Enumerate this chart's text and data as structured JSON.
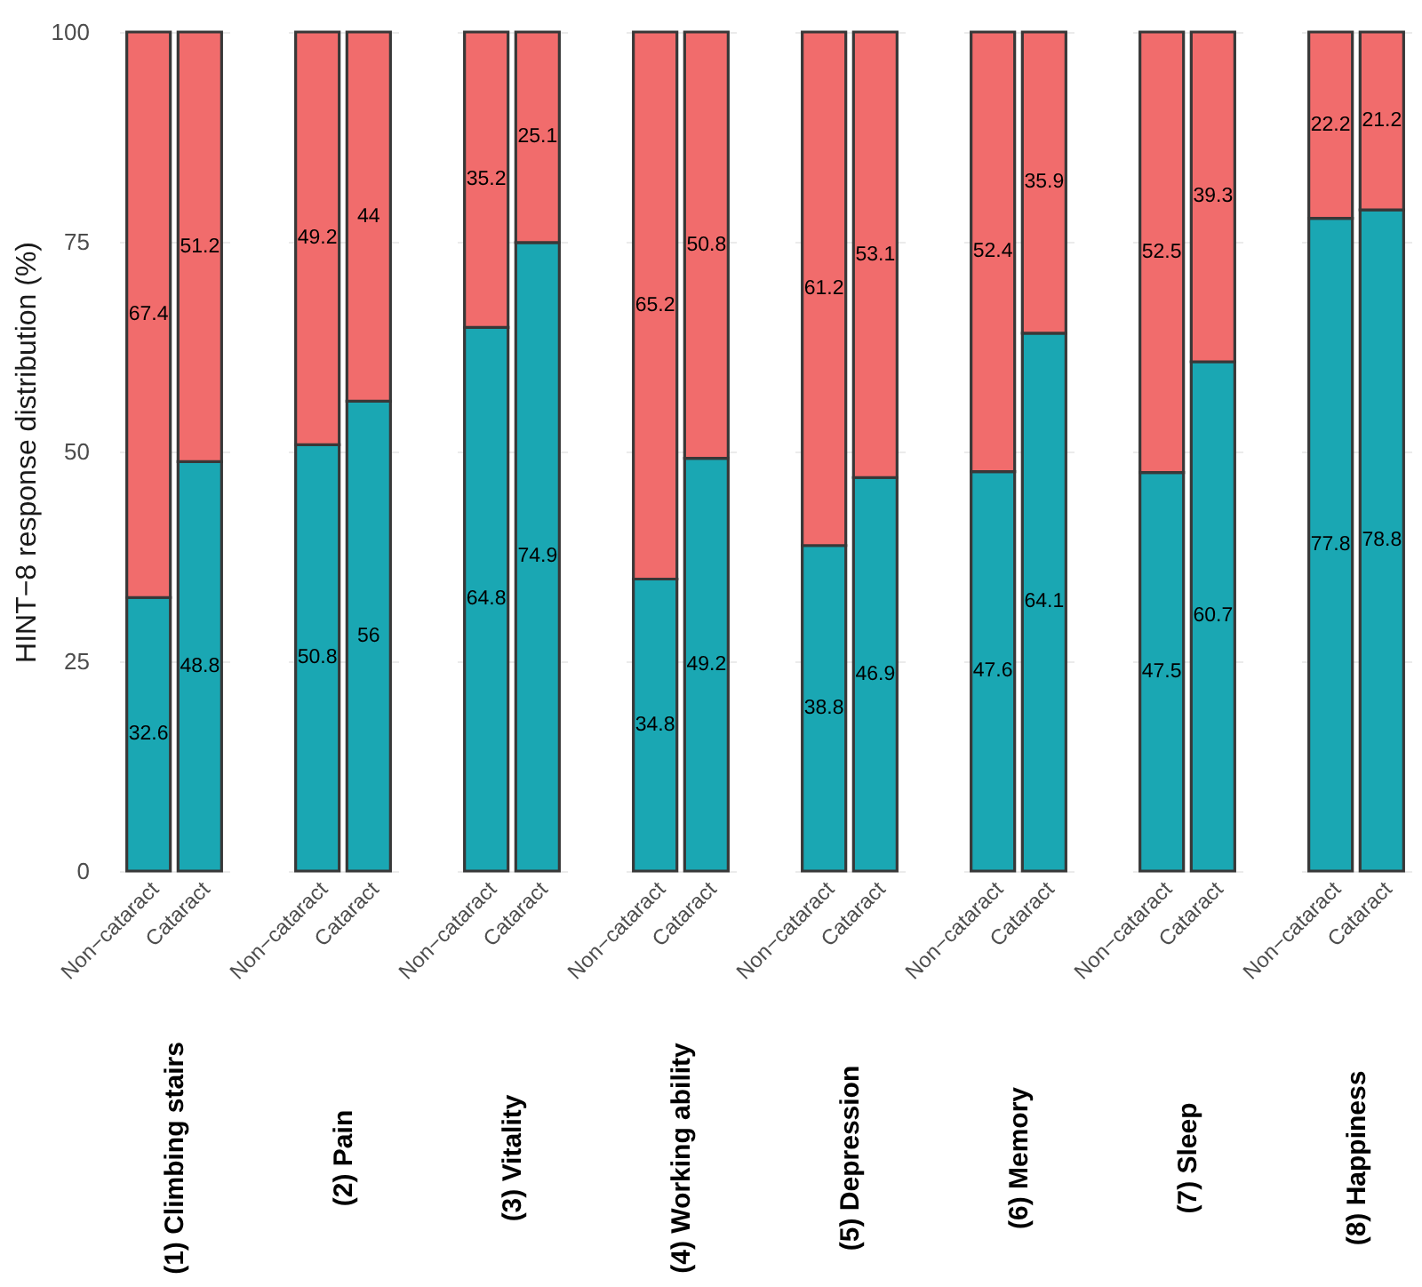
{
  "chart_data": [
    {
      "type": "bar",
      "stacked": true,
      "categories": [
        "Non−cataract",
        "Cataract"
      ],
      "series": [
        {
          "color": "#1aa7b3",
          "values": [
            32.6,
            48.8
          ]
        },
        {
          "color": "#f16c6c",
          "values": [
            67.4,
            51.2
          ]
        }
      ],
      "title": "(1) Climbing stairs",
      "ylabel": "HINT−8 response distribution (%)",
      "ylim": [
        0,
        100
      ],
      "yticks": [
        0,
        25,
        50,
        75,
        100
      ],
      "grid": "y",
      "data_labels": true
    },
    {
      "type": "bar",
      "stacked": true,
      "categories": [
        "Non−cataract",
        "Cataract"
      ],
      "series": [
        {
          "color": "#1aa7b3",
          "values": [
            50.8,
            56
          ]
        },
        {
          "color": "#f16c6c",
          "values": [
            49.2,
            44
          ]
        }
      ],
      "title": "(2) Pain",
      "ylim": [
        0,
        100
      ],
      "yticks": [
        0,
        25,
        50,
        75,
        100
      ],
      "grid": "y",
      "data_labels": true,
      "tick_labels": "x"
    },
    {
      "type": "bar",
      "stacked": true,
      "categories": [
        "Non−cataract",
        "Cataract"
      ],
      "series": [
        {
          "color": "#1aa7b3",
          "values": [
            64.8,
            74.9
          ]
        },
        {
          "color": "#f16c6c",
          "values": [
            35.2,
            25.1
          ]
        }
      ],
      "title": "(3) Vitality",
      "ylim": [
        0,
        100
      ],
      "yticks": [
        0,
        25,
        50,
        75,
        100
      ],
      "grid": "y",
      "data_labels": true,
      "tick_labels": "x"
    },
    {
      "type": "bar",
      "stacked": true,
      "categories": [
        "Non−cataract",
        "Cataract"
      ],
      "series": [
        {
          "color": "#1aa7b3",
          "values": [
            34.8,
            49.2
          ]
        },
        {
          "color": "#f16c6c",
          "values": [
            65.2,
            50.8
          ]
        }
      ],
      "title": "(4) Working ability",
      "ylim": [
        0,
        100
      ],
      "yticks": [
        0,
        25,
        50,
        75,
        100
      ],
      "grid": "y",
      "data_labels": true,
      "tick_labels": "x"
    },
    {
      "type": "bar",
      "stacked": true,
      "categories": [
        "Non−cataract",
        "Cataract"
      ],
      "series": [
        {
          "color": "#1aa7b3",
          "values": [
            38.8,
            46.9
          ]
        },
        {
          "color": "#f16c6c",
          "values": [
            61.2,
            53.1
          ]
        }
      ],
      "title": "(5) Depression",
      "ylim": [
        0,
        100
      ],
      "yticks": [
        0,
        25,
        50,
        75,
        100
      ],
      "grid": "y",
      "data_labels": true,
      "tick_labels": "x"
    },
    {
      "type": "bar",
      "stacked": true,
      "categories": [
        "Non−cataract",
        "Cataract"
      ],
      "series": [
        {
          "color": "#1aa7b3",
          "values": [
            47.6,
            64.1
          ]
        },
        {
          "color": "#f16c6c",
          "values": [
            52.4,
            35.9
          ]
        }
      ],
      "title": "(6) Memory",
      "ylim": [
        0,
        100
      ],
      "yticks": [
        0,
        25,
        50,
        75,
        100
      ],
      "grid": "y",
      "data_labels": true,
      "tick_labels": "x"
    },
    {
      "type": "bar",
      "stacked": true,
      "categories": [
        "Non−cataract",
        "Cataract"
      ],
      "series": [
        {
          "color": "#1aa7b3",
          "values": [
            47.5,
            60.7
          ]
        },
        {
          "color": "#f16c6c",
          "values": [
            52.5,
            39.3
          ]
        }
      ],
      "title": "(7) Sleep",
      "ylim": [
        0,
        100
      ],
      "yticks": [
        0,
        25,
        50,
        75,
        100
      ],
      "grid": "y",
      "data_labels": true,
      "tick_labels": "x"
    },
    {
      "type": "bar",
      "stacked": true,
      "categories": [
        "Non−cataract",
        "Cataract"
      ],
      "series": [
        {
          "color": "#1aa7b3",
          "values": [
            77.8,
            78.8
          ]
        },
        {
          "color": "#f16c6c",
          "values": [
            22.2,
            21.2
          ]
        }
      ],
      "title": "(8) Happiness",
      "ylim": [
        0,
        100
      ],
      "yticks": [
        0,
        25,
        50,
        75,
        100
      ],
      "grid": "y",
      "data_labels": true,
      "tick_labels": "x"
    }
  ]
}
